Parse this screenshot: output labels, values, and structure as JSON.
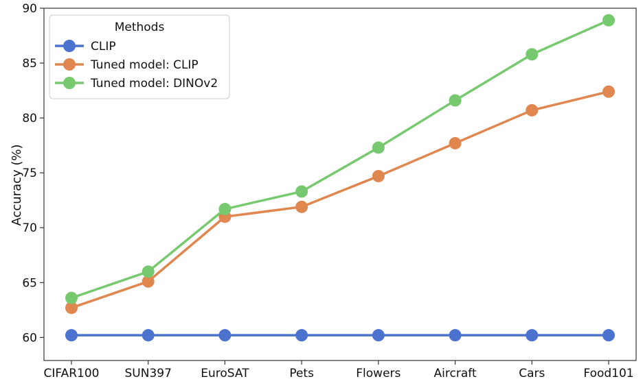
{
  "chart_data": {
    "type": "line",
    "title": "",
    "xlabel": "",
    "ylabel": "Accuracy (%)",
    "categories": [
      "CIFAR100",
      "SUN397",
      "EuroSAT",
      "Pets",
      "Flowers",
      "Aircraft",
      "Cars",
      "Food101"
    ],
    "ylim": [
      57.9,
      90
    ],
    "yticks": [
      60,
      65,
      70,
      75,
      80,
      85,
      90
    ],
    "grid": false,
    "legend": {
      "title": "Methods",
      "placement": "top-left"
    },
    "series": [
      {
        "name": "CLIP",
        "color": "#4C72D0",
        "values": [
          60.2,
          60.2,
          60.2,
          60.2,
          60.2,
          60.2,
          60.2,
          60.2
        ]
      },
      {
        "name": "Tuned model: CLIP",
        "color": "#E0864F",
        "values": [
          62.7,
          65.1,
          71.0,
          71.9,
          74.7,
          77.7,
          80.7,
          82.4
        ]
      },
      {
        "name": "Tuned model: DINOv2",
        "color": "#77C96F",
        "values": [
          63.6,
          66.0,
          71.7,
          73.3,
          77.3,
          81.6,
          85.8,
          88.9
        ]
      }
    ]
  }
}
